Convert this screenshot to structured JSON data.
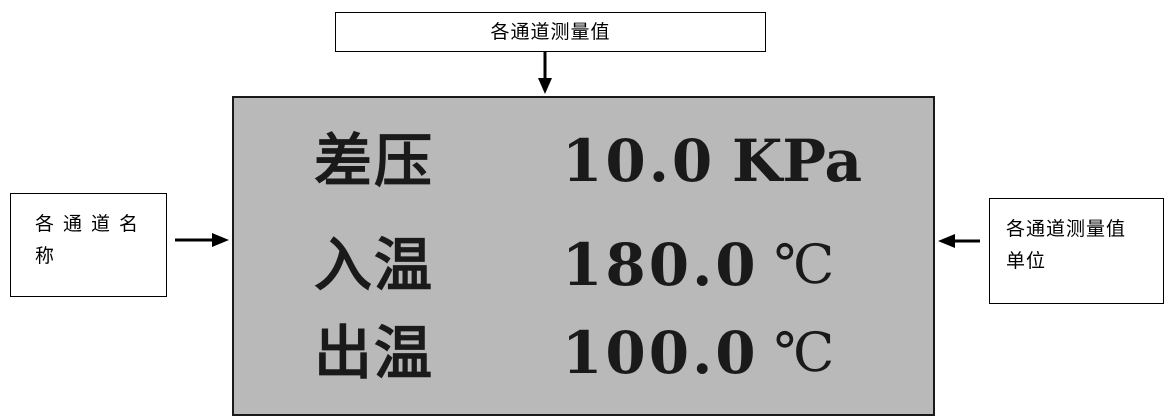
{
  "callouts": {
    "top": "各通道测量值",
    "left_line1": "各通道名",
    "left_line2": "称",
    "right_line1": "各通道测量值",
    "right_line2": "单位"
  },
  "display": {
    "rows": [
      {
        "name": "差压",
        "value": "10.0",
        "unit": "KPa"
      },
      {
        "name": "入温",
        "value": "180.0",
        "unit": "℃"
      },
      {
        "name": "出温",
        "value": "100.0",
        "unit": "℃"
      }
    ],
    "background_color": "#b9b9b9"
  }
}
